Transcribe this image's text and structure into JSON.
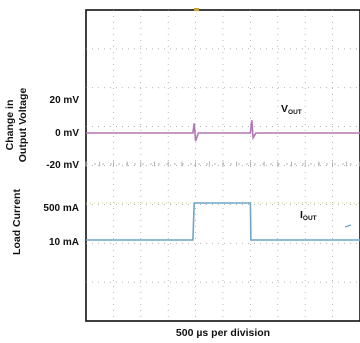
{
  "chart_data": {
    "type": "line",
    "xlabel": "500 µs per division",
    "grid": true,
    "divisions": {
      "x": 10,
      "y": 8
    },
    "colors": {
      "vout": "#b477b5",
      "iout": "#6fa6c8",
      "frame": "#111111",
      "grid": "#9a9a9a"
    },
    "y_group_labels": {
      "voltage": [
        "Change in",
        "Output Voltage"
      ],
      "current": "Load Current"
    },
    "tick_labels": {
      "voltage": [
        "20 mV",
        "0 mV",
        "-20 mV"
      ],
      "current": [
        "500 mA",
        "10 mA"
      ]
    },
    "series": [
      {
        "name": "VOUT",
        "name_main": "V",
        "name_sub": "OUT",
        "units": "mV",
        "x_div": [
          0,
          3.9,
          3.95,
          4.0,
          4.1,
          6.0,
          6.05,
          6.1,
          6.2,
          10
        ],
        "values": [
          0,
          0,
          6,
          -5,
          0,
          0,
          8,
          -3,
          0,
          0
        ]
      },
      {
        "name": "IOUT",
        "name_main": "I",
        "name_sub": "OUT",
        "units": "mA",
        "x_div": [
          0,
          3.9,
          3.95,
          6.0,
          6.02,
          10
        ],
        "values": [
          10,
          10,
          500,
          500,
          10,
          10
        ]
      }
    ]
  }
}
